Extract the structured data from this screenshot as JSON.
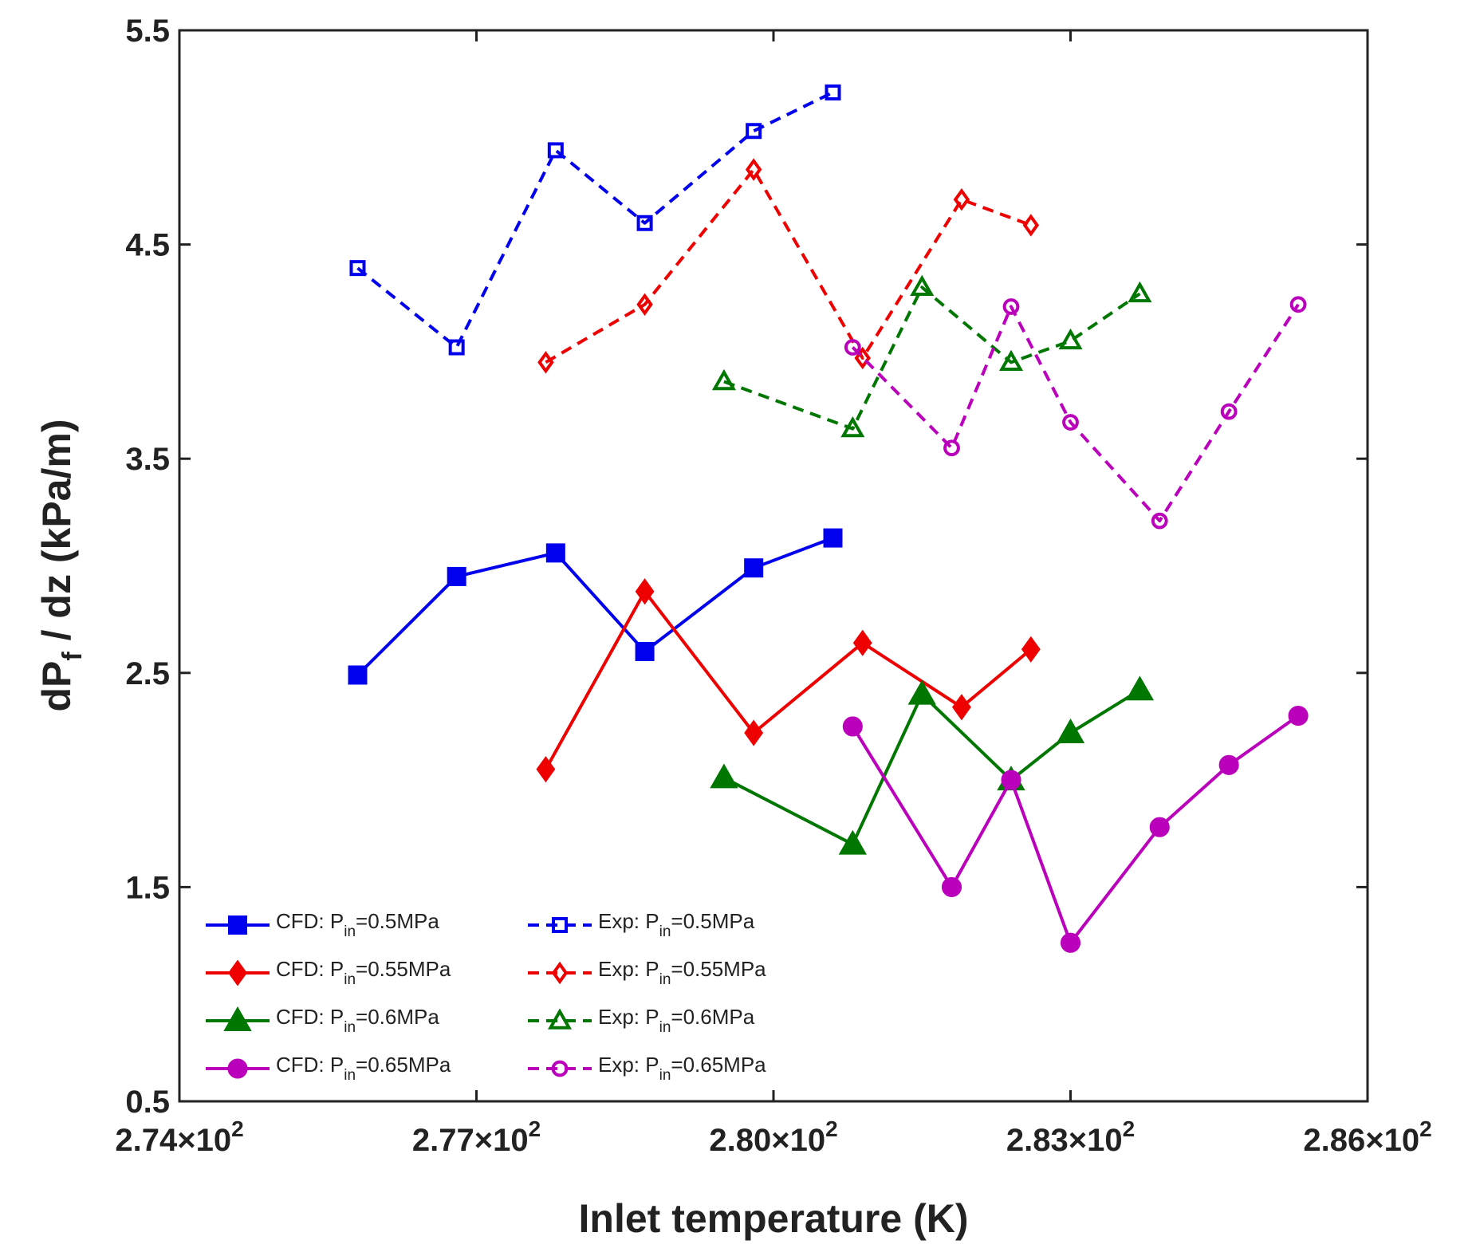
{
  "chart_data": {
    "type": "line",
    "title": "",
    "xlabel": "Inlet temperature (K)",
    "ylabel": {
      "prefix": "dP",
      "subscript": "f",
      "suffix": " / dz (kPa/m)"
    },
    "xlim": [
      274,
      286
    ],
    "ylim": [
      0.5,
      5.5
    ],
    "xticks": [
      274,
      277,
      280,
      283,
      286
    ],
    "xtick_labels": [
      {
        "mantissa": "2.74×10",
        "exponent": "2"
      },
      {
        "mantissa": "2.77×10",
        "exponent": "2"
      },
      {
        "mantissa": "2.80×10",
        "exponent": "2"
      },
      {
        "mantissa": "2.83×10",
        "exponent": "2"
      },
      {
        "mantissa": "2.86×10",
        "exponent": "2"
      }
    ],
    "yticks": [
      0.5,
      1.5,
      2.5,
      3.5,
      4.5,
      5.5
    ],
    "ytick_labels": [
      "0.5",
      "1.5",
      "2.5",
      "3.5",
      "4.5",
      "5.5"
    ],
    "grid": false,
    "legend_position": "bottom-left",
    "series": [
      {
        "name": {
          "prefix": "CFD: P",
          "sub": "in",
          "suffix": "=0.5MPa"
        },
        "color": "#0000ee",
        "line": "solid",
        "marker": "square",
        "filled": true,
        "x": [
          275.8,
          276.8,
          277.8,
          278.7,
          279.8,
          280.6
        ],
        "y": [
          2.49,
          2.95,
          3.06,
          2.6,
          2.99,
          3.13
        ]
      },
      {
        "name": {
          "prefix": "CFD: P",
          "sub": "in",
          "suffix": "=0.55MPa"
        },
        "color": "#ee0000",
        "line": "solid",
        "marker": "diamond",
        "filled": true,
        "x": [
          277.7,
          278.7,
          279.8,
          280.9,
          281.9,
          282.6
        ],
        "y": [
          2.05,
          2.88,
          2.22,
          2.64,
          2.34,
          2.61
        ]
      },
      {
        "name": {
          "prefix": "CFD: P",
          "sub": "in",
          "suffix": "=0.6MPa"
        },
        "color": "#007700",
        "line": "solid",
        "marker": "triangle",
        "filled": true,
        "x": [
          279.5,
          280.8,
          281.5,
          282.4,
          283.0,
          283.7
        ],
        "y": [
          2.01,
          1.7,
          2.4,
          2.0,
          2.22,
          2.42
        ]
      },
      {
        "name": {
          "prefix": "CFD: P",
          "sub": "in",
          "suffix": "=0.65MPa"
        },
        "color": "#bb00bb",
        "line": "solid",
        "marker": "circle",
        "filled": true,
        "x": [
          280.8,
          281.8,
          282.4,
          283.0,
          283.9,
          284.6,
          285.3
        ],
        "y": [
          2.25,
          1.5,
          2.0,
          1.24,
          1.78,
          2.07,
          2.3
        ]
      },
      {
        "name": {
          "prefix": "Exp: P",
          "sub": "in",
          "suffix": "=0.5MPa"
        },
        "color": "#0000ee",
        "line": "dashed",
        "marker": "square",
        "filled": false,
        "x": [
          275.8,
          276.8,
          277.8,
          278.7,
          279.8,
          280.6
        ],
        "y": [
          4.39,
          4.02,
          4.94,
          4.6,
          5.03,
          5.21
        ]
      },
      {
        "name": {
          "prefix": "Exp: P",
          "sub": "in",
          "suffix": "=0.55MPa"
        },
        "color": "#ee0000",
        "line": "dashed",
        "marker": "diamond",
        "filled": false,
        "x": [
          277.7,
          278.7,
          279.8,
          280.9,
          281.9,
          282.6
        ],
        "y": [
          3.95,
          4.22,
          4.85,
          3.97,
          4.71,
          4.59
        ]
      },
      {
        "name": {
          "prefix": "Exp: P",
          "sub": "in",
          "suffix": "=0.6MPa"
        },
        "color": "#007700",
        "line": "dashed",
        "marker": "triangle",
        "filled": false,
        "x": [
          279.5,
          280.8,
          281.5,
          282.4,
          283.0,
          283.7
        ],
        "y": [
          3.86,
          3.64,
          4.3,
          3.95,
          4.05,
          4.27
        ]
      },
      {
        "name": {
          "prefix": "Exp: P",
          "sub": "in",
          "suffix": "=0.65MPa"
        },
        "color": "#bb00bb",
        "line": "dashed",
        "marker": "circle",
        "filled": false,
        "x": [
          280.8,
          281.8,
          282.4,
          283.0,
          283.9,
          284.6,
          285.3
        ],
        "y": [
          4.02,
          3.55,
          4.21,
          3.67,
          3.21,
          3.72,
          4.22
        ]
      }
    ]
  }
}
